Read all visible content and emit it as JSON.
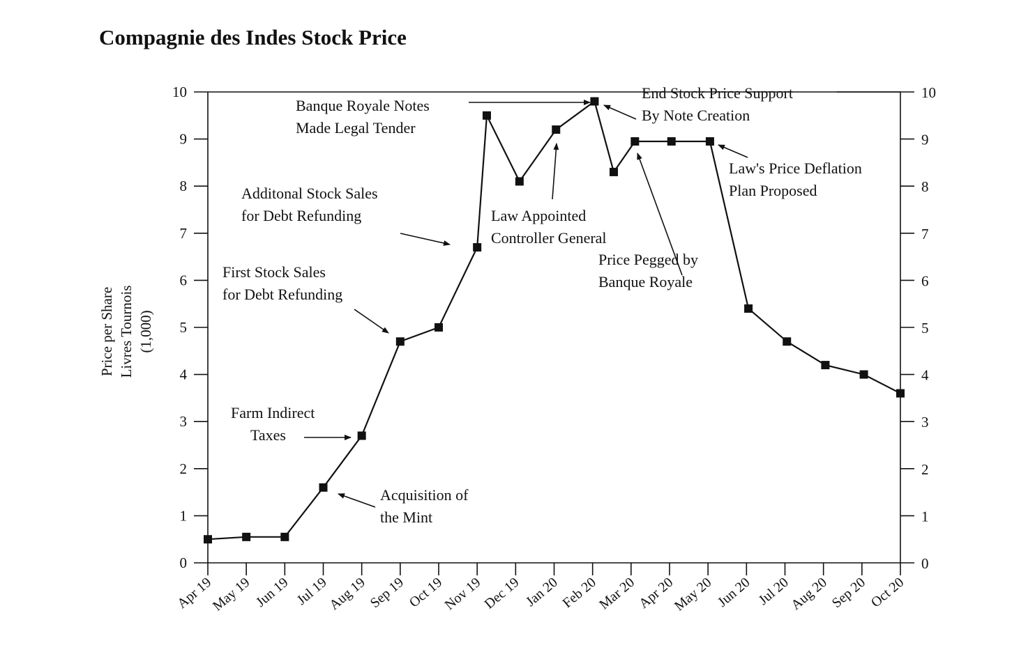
{
  "chart_data": {
    "type": "line",
    "title": "Compagnie des Indes Stock Price",
    "ylabel_lines": [
      "Price per Share",
      "Livres Tournois",
      "(1,000)"
    ],
    "ylim": [
      0,
      10
    ],
    "y_ticks": [
      "0",
      "1",
      "2",
      "3",
      "4",
      "5",
      "6",
      "7",
      "8",
      "9",
      "10"
    ],
    "categories": [
      "Apr 19",
      "May 19",
      "Jun 19",
      "Jul 19",
      "Aug 19",
      "Sep 19",
      "Oct 19",
      "Nov 19",
      "Dec 19",
      "Jan 20",
      "Feb 20",
      "Mar 20",
      "Apr 20",
      "May 20",
      "Jun 20",
      "Jul 20",
      "Aug 20",
      "Sep 20",
      "Oct 20"
    ],
    "right_axis": true,
    "grid": false,
    "series": [
      {
        "points": [
          {
            "x": 0,
            "y": 0.5
          },
          {
            "x": 1,
            "y": 0.55
          },
          {
            "x": 2,
            "y": 0.55
          },
          {
            "x": 3,
            "y": 1.6
          },
          {
            "x": 4,
            "y": 2.7
          },
          {
            "x": 5,
            "y": 4.7
          },
          {
            "x": 6,
            "y": 5.0
          },
          {
            "x": 7,
            "y": 6.7
          },
          {
            "x": 7.25,
            "y": 9.5
          },
          {
            "x": 8.1,
            "y": 8.1
          },
          {
            "x": 9.05,
            "y": 9.2
          },
          {
            "x": 10.05,
            "y": 9.8
          },
          {
            "x": 10.55,
            "y": 8.3
          },
          {
            "x": 11.1,
            "y": 8.95
          },
          {
            "x": 12.05,
            "y": 8.95
          },
          {
            "x": 13.05,
            "y": 8.95
          },
          {
            "x": 14.05,
            "y": 5.4
          },
          {
            "x": 15.05,
            "y": 4.7
          },
          {
            "x": 16.05,
            "y": 4.2
          },
          {
            "x": 17.05,
            "y": 4.0
          },
          {
            "x": 18.0,
            "y": 3.6
          }
        ]
      }
    ],
    "annotations": [
      {
        "lines": [
          "Banque Royale Notes",
          "Made Legal Tender"
        ]
      },
      {
        "lines": [
          "End Stock Price Support",
          "By Note Creation"
        ]
      },
      {
        "lines": [
          "Law's Price Deflation",
          "Plan Proposed"
        ]
      },
      {
        "lines": [
          "Additonal Stock Sales",
          "for Debt Refunding"
        ]
      },
      {
        "lines": [
          "Law Appointed",
          "Controller General"
        ]
      },
      {
        "lines": [
          "Price Pegged by",
          "Banque Royale"
        ]
      },
      {
        "lines": [
          "First Stock Sales",
          "for Debt Refunding"
        ]
      },
      {
        "lines": [
          "Farm Indirect",
          "Taxes"
        ]
      },
      {
        "lines": [
          "Acquisition of",
          "the Mint"
        ]
      }
    ]
  }
}
